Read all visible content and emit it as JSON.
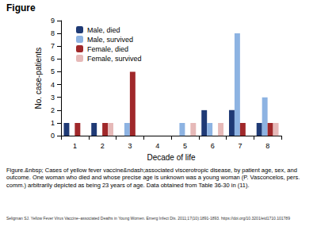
{
  "chart_data": {
    "type": "bar",
    "x_label": "Decade of life",
    "y_label": "No. case-patients",
    "categories": [
      "1",
      "2",
      "3",
      "4",
      "5",
      "6",
      "7",
      "8"
    ],
    "series": [
      {
        "name": "Male, died",
        "color": "#1f3a75",
        "values": [
          1,
          1,
          0,
          0,
          0,
          2,
          2,
          1
        ]
      },
      {
        "name": "Male, survived",
        "color": "#8db3e2",
        "values": [
          0,
          0,
          1,
          0,
          1,
          1,
          8,
          3
        ]
      },
      {
        "name": "Female, died",
        "color": "#a0282a",
        "values": [
          1,
          1,
          5,
          0,
          0,
          0,
          1,
          1
        ]
      },
      {
        "name": "Female, survived",
        "color": "#e6b9b8",
        "values": [
          0,
          1,
          0,
          0,
          1,
          1,
          0,
          1
        ]
      }
    ],
    "ylim": [
      0,
      9
    ],
    "yticks": [
      0,
      1,
      2,
      3,
      4,
      5,
      6,
      7,
      8,
      9
    ],
    "grid": false,
    "legend": "upper left"
  },
  "page": {
    "header": "Figure",
    "caption": "Figure.&nbsp; Cases of yellow fever vaccine&ndash;associated viscerotropic disease, by patient age, sex, and outcome. One woman who died and whose precise age is unknown was a young woman (P. Vasconcelos, pers. comm.) arbitrarily depicted as being 23 years of age. Data obtained from Table 36-30 in (11).",
    "citation": "Seligman SJ. Yellow Fever Virus Vaccine–associated Deaths in Young Women. Emerg Infect Dis. 2011;17(10):1891-1893. https://doi.org/10.3201/eid1710.101789"
  }
}
